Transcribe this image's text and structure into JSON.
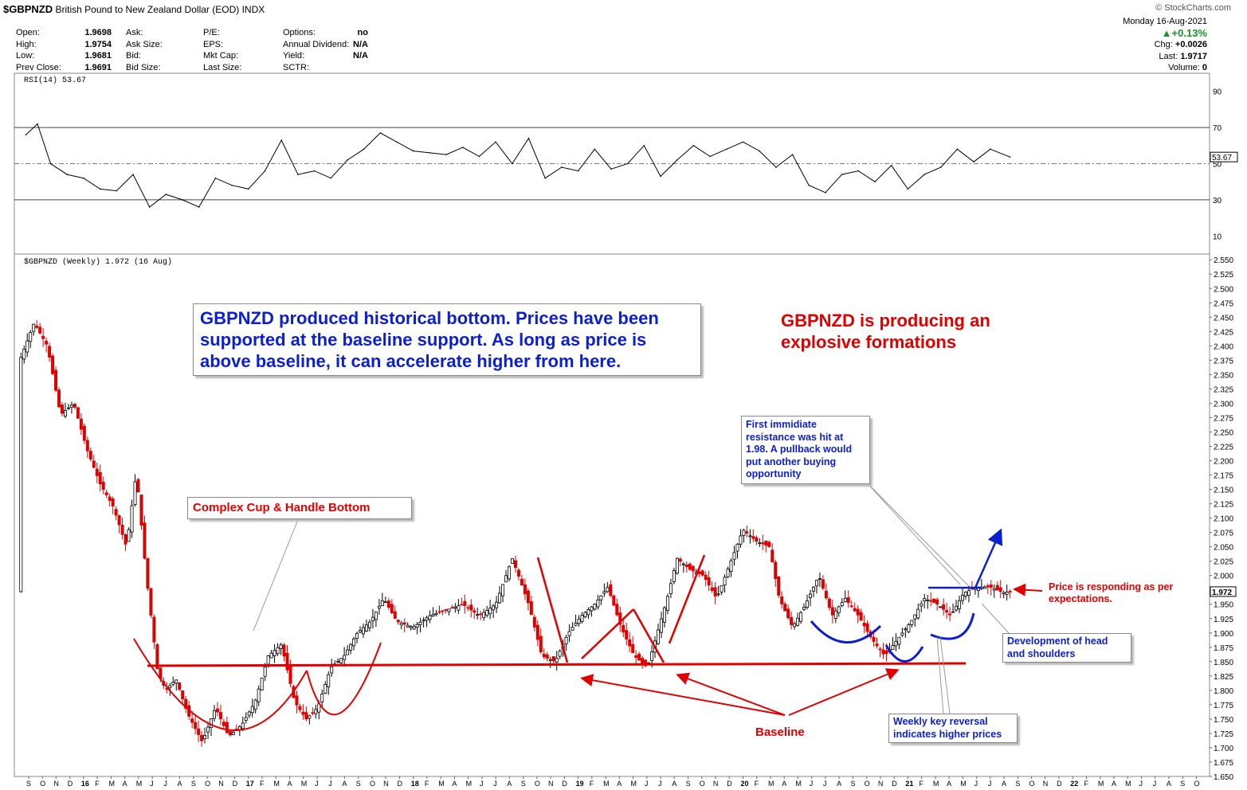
{
  "header": {
    "symbol": "$GBPNZD",
    "name": "British Pound to New Zealand Dollar (EOD)",
    "exchange": "INDX",
    "copyright": "© StockCharts.com"
  },
  "quote": {
    "col1": [
      [
        "Open:",
        "1.9698"
      ],
      [
        "High:",
        "1.9754"
      ],
      [
        "Low:",
        "1.9681"
      ],
      [
        "Prev Close:",
        "1.9691"
      ]
    ],
    "col2": [
      "Ask:",
      "Ask Size:",
      "Bid:",
      "Bid Size:"
    ],
    "col3": [
      "P/E:",
      "EPS:",
      "Mkt Cap:",
      "Last Size:"
    ],
    "col4": [
      [
        "Options:",
        "no"
      ],
      [
        "Annual Dividend:",
        "N/A"
      ],
      [
        "Yield:",
        "N/A"
      ],
      [
        "SCTR:",
        ""
      ]
    ]
  },
  "stats": {
    "date": "Monday  16-Aug-2021",
    "change_pct": "▲+0.13%",
    "chg_label": "Chg:",
    "chg_value": "+0.0026",
    "last_label": "Last:",
    "last_value": "1.9717",
    "volume_label": "Volume:",
    "volume_value": "0"
  },
  "colors": {
    "up": "#000000",
    "down": "#e00000",
    "annotation_red": "#e00000",
    "annotation_blue": "#0b1fd0",
    "rsi_line": "#000000"
  },
  "chart_data": [
    {
      "type": "line",
      "title": "RSI(14) 53.67",
      "ylim": [
        0,
        100
      ],
      "ticks": [
        "90",
        "70",
        "50",
        "30",
        "10"
      ],
      "tick_values": [
        90,
        70,
        50,
        30,
        10
      ],
      "reference_lines": [
        70,
        50,
        30
      ],
      "last_label": "53.67",
      "x": [
        2015.65,
        2015.72,
        2015.8,
        2015.9,
        2016.0,
        2016.1,
        2016.2,
        2016.3,
        2016.4,
        2016.5,
        2016.6,
        2016.7,
        2016.8,
        2016.9,
        2017.0,
        2017.1,
        2017.2,
        2017.3,
        2017.4,
        2017.5,
        2017.6,
        2017.7,
        2017.8,
        2017.9,
        2018.0,
        2018.1,
        2018.2,
        2018.3,
        2018.4,
        2018.5,
        2018.6,
        2018.7,
        2018.8,
        2018.9,
        2019.0,
        2019.1,
        2019.2,
        2019.3,
        2019.4,
        2019.5,
        2019.6,
        2019.7,
        2019.8,
        2019.9,
        2020.0,
        2020.1,
        2020.2,
        2020.3,
        2020.4,
        2020.5,
        2020.6,
        2020.7,
        2020.8,
        2020.9,
        2021.0,
        2021.1,
        2021.2,
        2021.3,
        2021.4,
        2021.5,
        2021.62
      ],
      "values": [
        66,
        72,
        50,
        44,
        42,
        36,
        35,
        44,
        26,
        33,
        30,
        26,
        42,
        38,
        36,
        46,
        63,
        44,
        46,
        42,
        52,
        58,
        67,
        62,
        57,
        56,
        55,
        59,
        54,
        62,
        50,
        64,
        42,
        48,
        46,
        58,
        47,
        50,
        60,
        43,
        52,
        60,
        54,
        58,
        62,
        57,
        48,
        55,
        38,
        34,
        44,
        46,
        40,
        49,
        36,
        44,
        48,
        58,
        51,
        58,
        53.67
      ]
    },
    {
      "type": "candlestick",
      "title": "$GBPNZD (Weekly) 1.972 (16 Aug)",
      "ylim": [
        1.65,
        2.56
      ],
      "y_ticks": [
        "2.550",
        "2.525",
        "2.500",
        "2.475",
        "2.450",
        "2.425",
        "2.400",
        "2.375",
        "2.350",
        "2.325",
        "2.300",
        "2.275",
        "2.250",
        "2.225",
        "2.200",
        "2.175",
        "2.150",
        "2.125",
        "2.100",
        "2.075",
        "2.050",
        "2.025",
        "2.000",
        "1.975",
        "1.950",
        "1.925",
        "1.900",
        "1.875",
        "1.850",
        "1.825",
        "1.800",
        "1.775",
        "1.750",
        "1.725",
        "1.700",
        "1.675",
        "1.650"
      ],
      "y_tick_values": [
        2.55,
        2.525,
        2.5,
        2.475,
        2.45,
        2.425,
        2.4,
        2.375,
        2.35,
        2.325,
        2.3,
        2.275,
        2.25,
        2.225,
        2.2,
        2.175,
        2.15,
        2.125,
        2.1,
        2.075,
        2.05,
        2.025,
        2.0,
        1.975,
        1.95,
        1.925,
        1.9,
        1.875,
        1.85,
        1.825,
        1.8,
        1.775,
        1.75,
        1.725,
        1.7,
        1.675,
        1.65
      ],
      "last_label": "1.972",
      "x_ticks": [
        "S",
        "O",
        "N",
        "D",
        "16",
        "F",
        "M",
        "A",
        "M",
        "J",
        "J",
        "A",
        "S",
        "O",
        "N",
        "D",
        "17",
        "F",
        "M",
        "A",
        "M",
        "J",
        "J",
        "A",
        "S",
        "O",
        "N",
        "D",
        "18",
        "F",
        "M",
        "A",
        "M",
        "J",
        "J",
        "A",
        "S",
        "O",
        "N",
        "D",
        "19",
        "F",
        "M",
        "A",
        "M",
        "J",
        "J",
        "A",
        "S",
        "O",
        "N",
        "D",
        "20",
        "F",
        "M",
        "A",
        "M",
        "J",
        "J",
        "A",
        "S",
        "O",
        "N",
        "D",
        "21",
        "F",
        "M",
        "A",
        "M",
        "J",
        "J",
        "A",
        "S",
        "O",
        "N",
        "D",
        "22",
        "F",
        "M",
        "A",
        "M",
        "J",
        "J",
        "A",
        "S",
        "O"
      ],
      "x_tick_values": [
        2015.667,
        2015.75,
        2015.833,
        2015.917,
        2016.0,
        2016.083,
        2016.167,
        2016.25,
        2016.333,
        2016.417,
        2016.5,
        2016.583,
        2016.667,
        2016.75,
        2016.833,
        2016.917,
        2017.0,
        2017.083,
        2017.167,
        2017.25,
        2017.333,
        2017.417,
        2017.5,
        2017.583,
        2017.667,
        2017.75,
        2017.833,
        2017.917,
        2018.0,
        2018.083,
        2018.167,
        2018.25,
        2018.333,
        2018.417,
        2018.5,
        2018.583,
        2018.667,
        2018.75,
        2018.833,
        2018.917,
        2019.0,
        2019.083,
        2019.167,
        2019.25,
        2019.333,
        2019.417,
        2019.5,
        2019.583,
        2019.667,
        2019.75,
        2019.833,
        2019.917,
        2020.0,
        2020.083,
        2020.167,
        2020.25,
        2020.333,
        2020.417,
        2020.5,
        2020.583,
        2020.667,
        2020.75,
        2020.833,
        2020.917,
        2021.0,
        2021.083,
        2021.167,
        2021.25,
        2021.333,
        2021.417,
        2021.5,
        2021.583,
        2021.667,
        2021.75,
        2021.833,
        2021.917,
        2022.0,
        2022.083,
        2022.167,
        2022.25,
        2022.333,
        2022.417,
        2022.5,
        2022.583,
        2022.667,
        2022.75
      ],
      "x": [
        2015.62,
        2015.7,
        2015.78,
        2015.86,
        2015.94,
        2016.02,
        2016.1,
        2016.18,
        2016.26,
        2016.32,
        2016.38,
        2016.45,
        2016.5,
        2016.56,
        2016.63,
        2016.72,
        2016.8,
        2016.88,
        2016.96,
        2017.04,
        2017.12,
        2017.2,
        2017.28,
        2017.35,
        2017.42,
        2017.5,
        2017.58,
        2017.66,
        2017.74,
        2017.82,
        2017.9,
        2018.0,
        2018.1,
        2018.2,
        2018.3,
        2018.4,
        2018.5,
        2018.6,
        2018.7,
        2018.78,
        2018.86,
        2018.94,
        2019.02,
        2019.1,
        2019.18,
        2019.26,
        2019.34,
        2019.42,
        2019.48,
        2019.54,
        2019.6,
        2019.68,
        2019.76,
        2019.84,
        2019.92,
        2020.0,
        2020.08,
        2020.16,
        2020.22,
        2020.3,
        2020.38,
        2020.46,
        2020.54,
        2020.62,
        2020.7,
        2020.78,
        2020.86,
        2020.94,
        2021.02,
        2021.1,
        2021.18,
        2021.26,
        2021.34,
        2021.42,
        2021.5,
        2021.58,
        2021.62
      ],
      "values": [
        2.38,
        2.44,
        2.4,
        2.28,
        2.3,
        2.22,
        2.16,
        2.12,
        2.05,
        2.18,
        2.0,
        1.83,
        1.8,
        1.82,
        1.76,
        1.71,
        1.77,
        1.72,
        1.74,
        1.78,
        1.86,
        1.88,
        1.78,
        1.75,
        1.77,
        1.84,
        1.86,
        1.9,
        1.92,
        1.96,
        1.92,
        1.91,
        1.93,
        1.94,
        1.95,
        1.93,
        1.95,
        2.03,
        1.95,
        1.86,
        1.85,
        1.9,
        1.93,
        1.95,
        1.98,
        1.91,
        1.86,
        1.84,
        1.9,
        1.96,
        2.03,
        2.01,
        2.0,
        1.96,
        2.02,
        2.08,
        2.06,
        2.05,
        1.96,
        1.91,
        1.95,
        2.0,
        1.93,
        1.96,
        1.93,
        1.89,
        1.86,
        1.89,
        1.92,
        1.96,
        1.95,
        1.93,
        1.97,
        1.98,
        1.98,
        1.97,
        1.972
      ],
      "annotations": {
        "box_top": "GBPNZD produced historical bottom. Prices have been supported at the baseline support. As long as price is above baseline, it can accelerate higher from here.",
        "explosive": "GBPNZD is producing an explosive formations",
        "cup_handle": "Complex Cup & Handle Bottom",
        "resistance": "First immidiate resistance was hit at 1.98. A pullback would put another buying opportunity",
        "price_resp": "Price is responding as per expectations.",
        "head_shoulders": "Development of head and shoulders",
        "key_reversal": "Weekly key reversal indicates higher prices",
        "baseline": "Baseline"
      }
    }
  ]
}
